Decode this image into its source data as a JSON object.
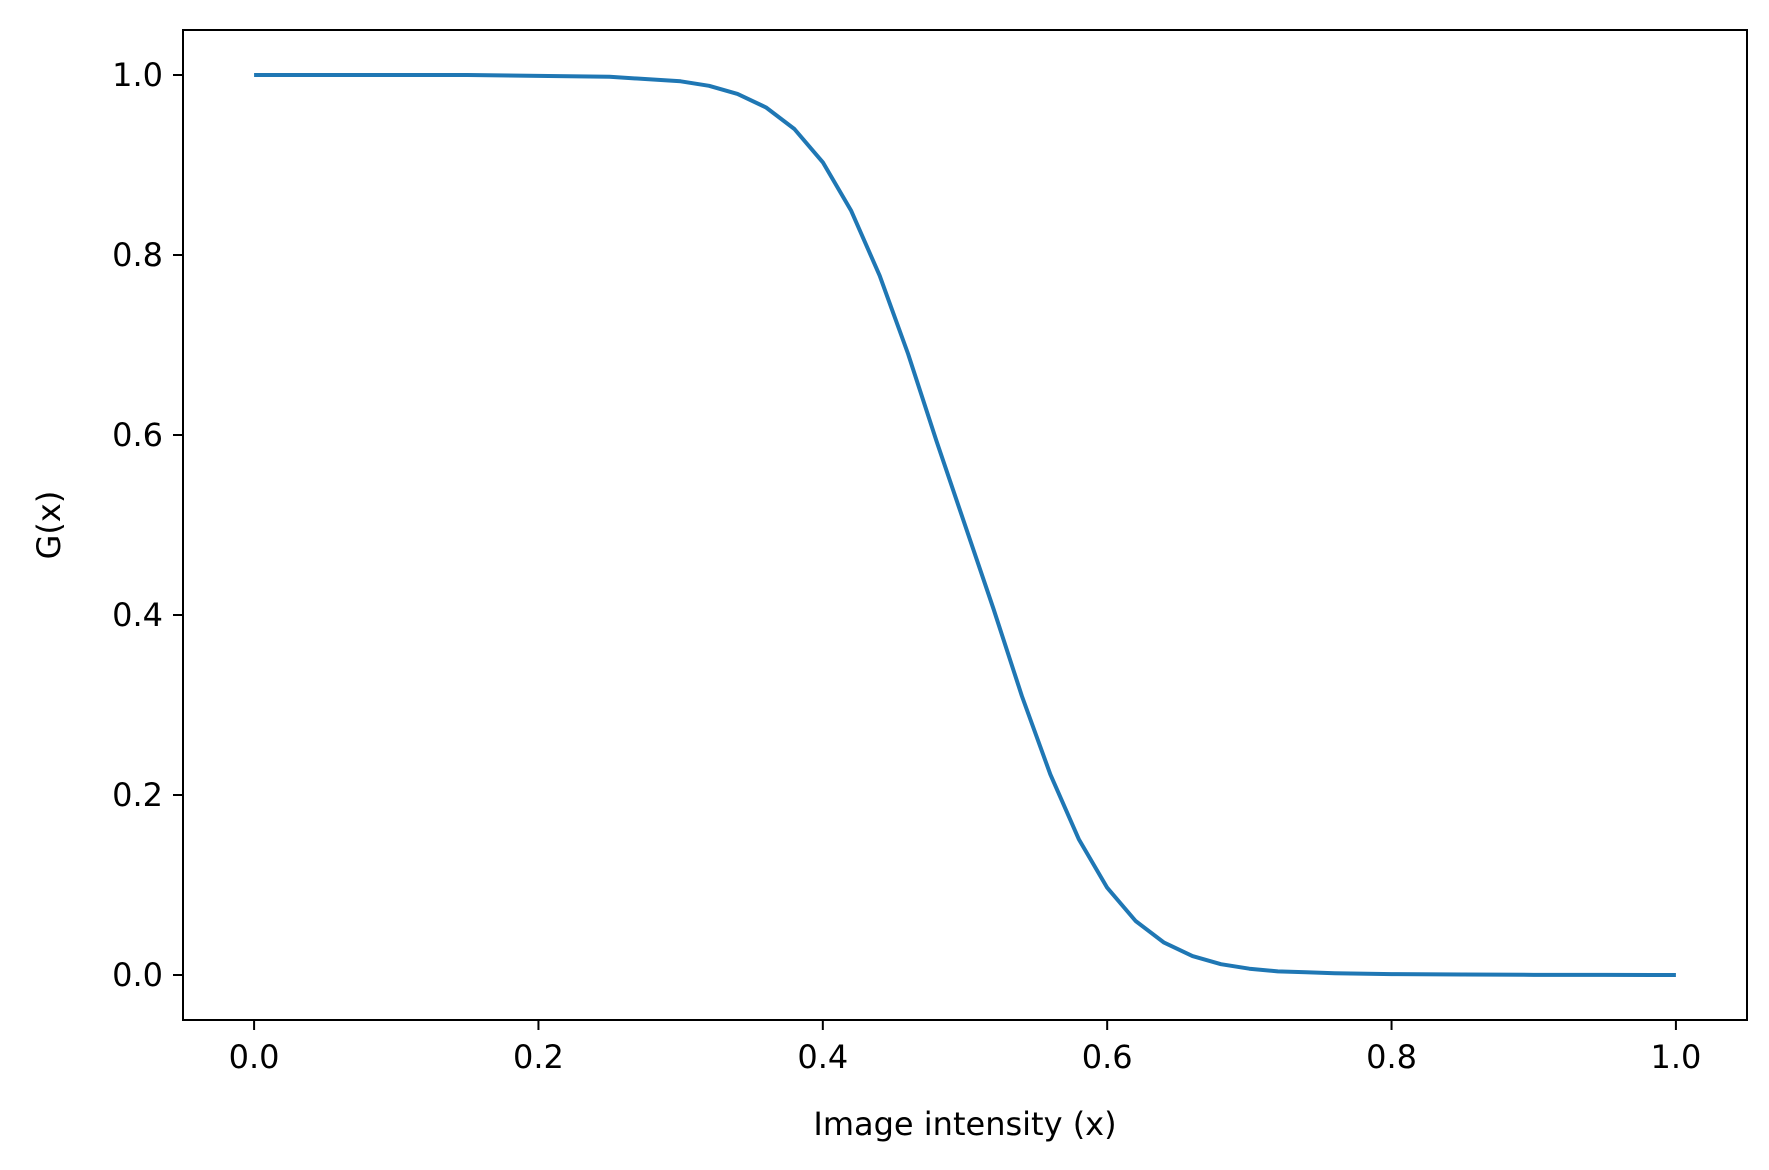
{
  "chart_data": {
    "type": "line",
    "title": "",
    "xlabel": "Image intensity (x)",
    "ylabel": "G(x)",
    "xlim": [
      -0.05,
      1.05
    ],
    "ylim": [
      -0.05,
      1.05
    ],
    "xticks": [
      0.0,
      0.2,
      0.4,
      0.6,
      0.8,
      1.0
    ],
    "xtick_labels": [
      "0.0",
      "0.2",
      "0.4",
      "0.6",
      "0.8",
      "1.0"
    ],
    "yticks": [
      0.0,
      0.2,
      0.4,
      0.6,
      0.8,
      1.0
    ],
    "ytick_labels": [
      "0.0",
      "0.2",
      "0.4",
      "0.6",
      "0.8",
      "1.0"
    ],
    "grid": false,
    "legend": "none",
    "series": [
      {
        "color": "#1f77b4",
        "x": [
          0.0,
          0.05,
          0.1,
          0.15,
          0.2,
          0.25,
          0.3,
          0.32,
          0.34,
          0.36,
          0.38,
          0.4,
          0.42,
          0.44,
          0.46,
          0.48,
          0.5,
          0.52,
          0.54,
          0.56,
          0.58,
          0.6,
          0.62,
          0.64,
          0.66,
          0.68,
          0.7,
          0.72,
          0.74,
          0.76,
          0.8,
          0.85,
          0.9,
          0.95,
          1.0
        ],
        "y": [
          1.0,
          1.0,
          1.0,
          1.0,
          0.999,
          0.998,
          0.993,
          0.988,
          0.979,
          0.964,
          0.94,
          0.903,
          0.849,
          0.777,
          0.69,
          0.593,
          0.5,
          0.407,
          0.31,
          0.223,
          0.151,
          0.097,
          0.06,
          0.036,
          0.021,
          0.012,
          0.007,
          0.004,
          0.003,
          0.002,
          0.001,
          0.0005,
          0.0002,
          0.0001,
          0.0
        ]
      }
    ]
  }
}
